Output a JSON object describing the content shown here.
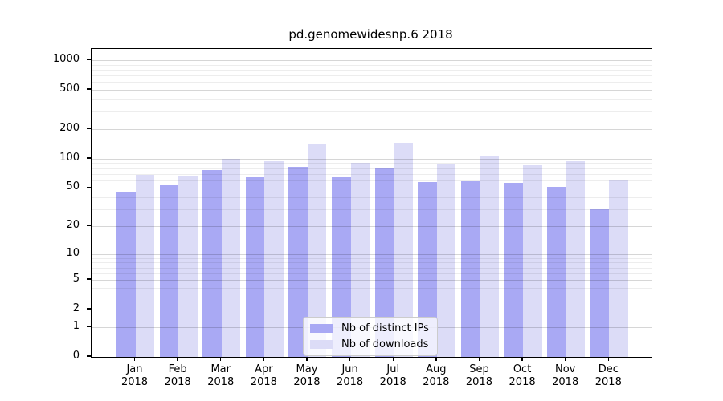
{
  "chart_data": {
    "type": "bar",
    "title": "pd.genomewidesnp.6 2018",
    "categories": [
      "Jan",
      "Feb",
      "Mar",
      "Apr",
      "May",
      "Jun",
      "Jul",
      "Aug",
      "Sep",
      "Oct",
      "Nov",
      "Dec"
    ],
    "x_sublabel": "2018",
    "series": [
      {
        "name": "Nb of distinct IPs",
        "color": "#a9a9f4",
        "values": [
          46,
          53,
          77,
          65,
          82,
          65,
          80,
          58,
          59,
          57,
          51,
          30
        ]
      },
      {
        "name": "Nb of downloads",
        "color": "#dcdcf7",
        "values": [
          68,
          66,
          100,
          95,
          140,
          91,
          145,
          88,
          106,
          85,
          94,
          61
        ]
      }
    ],
    "xlabel": "",
    "ylabel": "",
    "y_scale": "log10(1+value)",
    "ylim": [
      0,
      1300
    ],
    "y_ticks": [
      0,
      1,
      2,
      5,
      10,
      20,
      50,
      100,
      200,
      500,
      1000
    ],
    "y_minor_ticks": [
      3,
      4,
      6,
      7,
      8,
      9,
      30,
      40,
      60,
      70,
      80,
      90,
      300,
      400,
      600,
      700,
      800,
      900
    ],
    "grid": "both",
    "legend_position": "lower-center"
  },
  "colors": {
    "major_grid": "rgba(0,0,0,0.16)",
    "minor_grid": "rgba(0,0,0,0.07)",
    "spine": "#000000",
    "background": "#ffffff"
  }
}
